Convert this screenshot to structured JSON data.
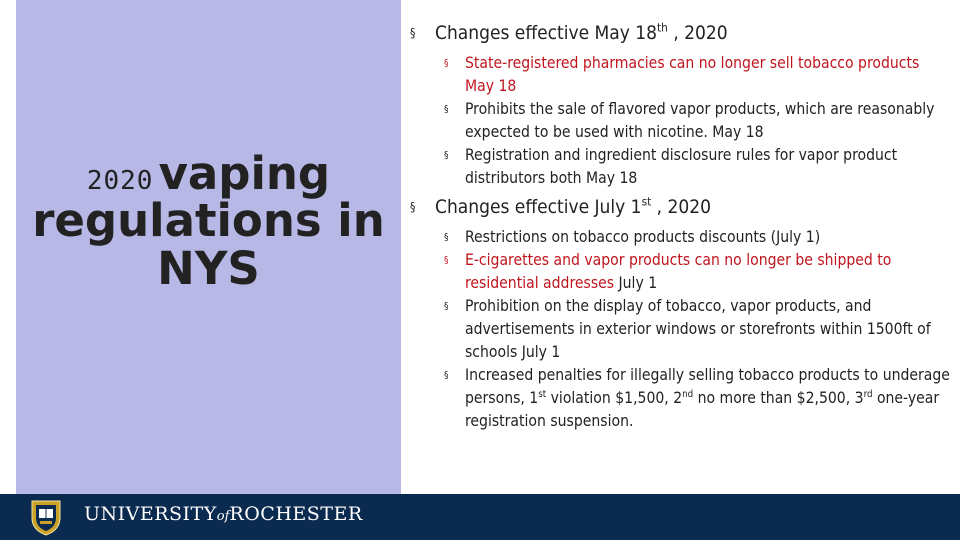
{
  "title": {
    "year": "2020",
    "word1": "vaping",
    "line2": "regulations in",
    "line3": "NYS"
  },
  "sections": [
    {
      "heading_pre": "Changes effective May 18",
      "heading_sup": "th",
      "heading_post": " , 2020",
      "items": [
        {
          "text": "State-registered pharmacies can no longer sell tobacco products May 18",
          "color": "#c0151e"
        },
        {
          "text": "Prohibits the sale of flavored vapor products, which are reasonably expected to be used with nicotine. May 18",
          "color": "#222222"
        },
        {
          "text": "Registration and ingredient disclosure rules for vapor product distributors both May 18",
          "color": "#222222"
        }
      ]
    },
    {
      "heading_pre": "Changes effective July 1",
      "heading_sup": "st",
      "heading_post": " , 2020",
      "items": [
        {
          "text": "Restrictions on tobacco products discounts (July 1)"
        },
        {
          "red_text": "E-cigarettes and vapor products can no longer be shipped to residential addresses",
          "tail": " July 1"
        },
        {
          "text": "Prohibition on the display of tobacco, vapor products, and advertisements in exterior windows or storefronts within 1500ft of schools July 1"
        },
        {
          "p1": "Increased penalties for illegally selling tobacco products to underage persons, 1",
          "s1": "st",
          "p2": " violation $1,500, 2",
          "s2": "nd",
          "p3": " no more than $2,500, 3",
          "s3": "rd",
          "p4": " one-year registration suspension."
        }
      ]
    }
  ],
  "bullet_glyph": "§",
  "footer": {
    "name_part1": "UNIVERSITY",
    "name_of": "of",
    "name_part2": "ROCHESTER"
  },
  "colors": {
    "left_panel": "#b7b8e5",
    "footer_bg": "#0b2a4f",
    "red_text": "#c0151e",
    "seal_gold": "#c9a227"
  }
}
